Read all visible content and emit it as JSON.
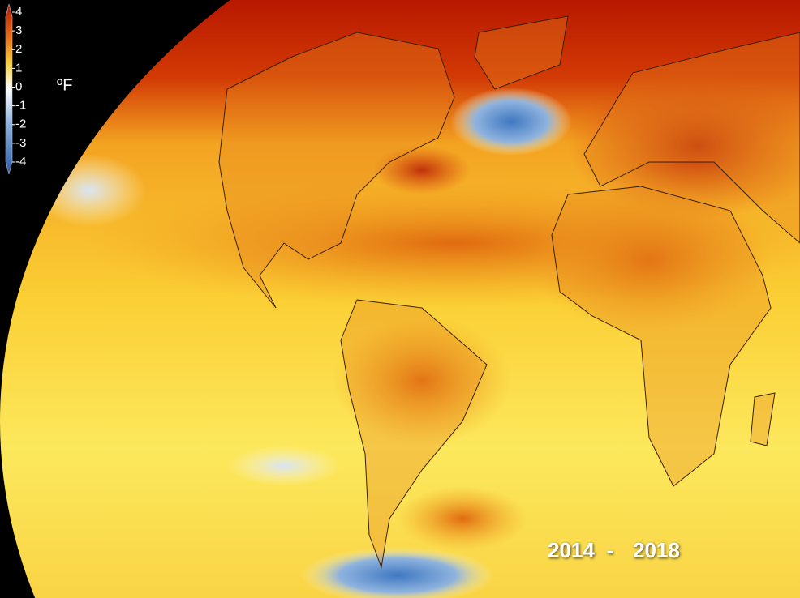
{
  "legend": {
    "ticks": [
      4,
      3,
      2,
      1,
      0,
      -1,
      -2,
      -3,
      -4
    ],
    "range": [
      -4,
      4
    ],
    "unit": "ºF"
  },
  "period": {
    "start": "2014",
    "separator": "-",
    "end": "2018"
  }
}
